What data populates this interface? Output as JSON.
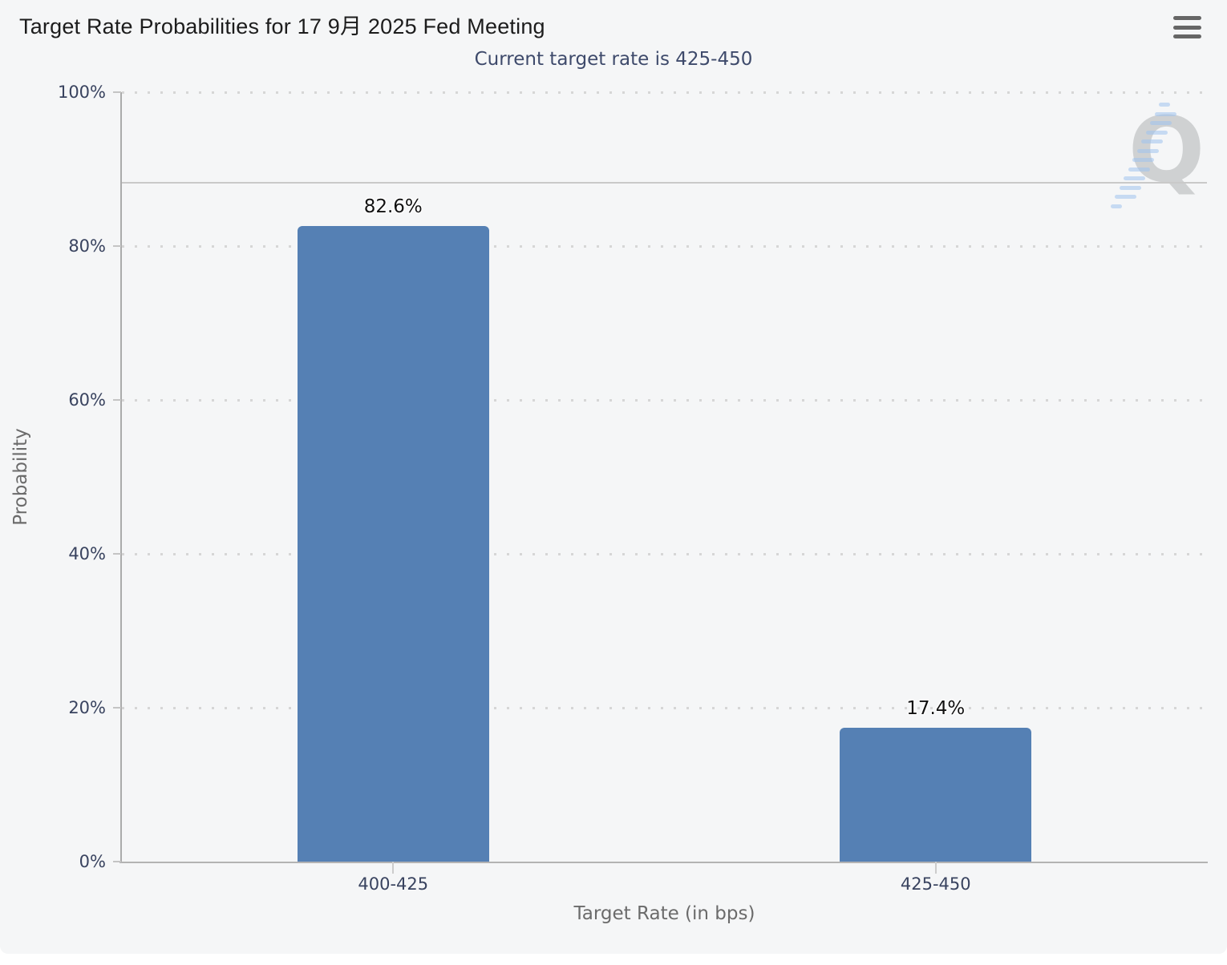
{
  "chart_data": {
    "type": "bar",
    "title": "Target Rate Probabilities for 17 9月 2025 Fed Meeting",
    "subtitle": "Current target rate is 425-450",
    "categories": [
      "400-425",
      "425-450"
    ],
    "values": [
      82.6,
      17.4
    ],
    "value_labels": [
      "82.6%",
      "17.4%"
    ],
    "xlabel": "Target Rate (in bps)",
    "ylabel": "Probability",
    "ylim": [
      0,
      100
    ],
    "yticks": [
      0,
      20,
      40,
      60,
      80,
      100
    ],
    "ytick_labels": [
      "0%",
      "20%",
      "40%",
      "60%",
      "80%",
      "100%"
    ],
    "grid": "dotted-horizontal",
    "legend_position": "none",
    "reference_line_value": 88.2,
    "bar_color": "#5580b4"
  },
  "toolbar": {
    "menu_icon": "hamburger-icon"
  },
  "watermark": {
    "text": "Q"
  },
  "colors": {
    "card_background": "#f5f6f7",
    "bar": "#5580b4",
    "title": "#1c1c1c",
    "subtitle": "#3e4a6b",
    "axis_label": "#39435f",
    "axis_title": "#6b6b6b",
    "grid_dot": "#d6d6d6",
    "axis_line": "#ababab",
    "reference_line": "#c9c9c9",
    "watermark_q": "#c6c8ca",
    "watermark_lines": "#9ec3ee",
    "menu_icon": "#666666"
  }
}
